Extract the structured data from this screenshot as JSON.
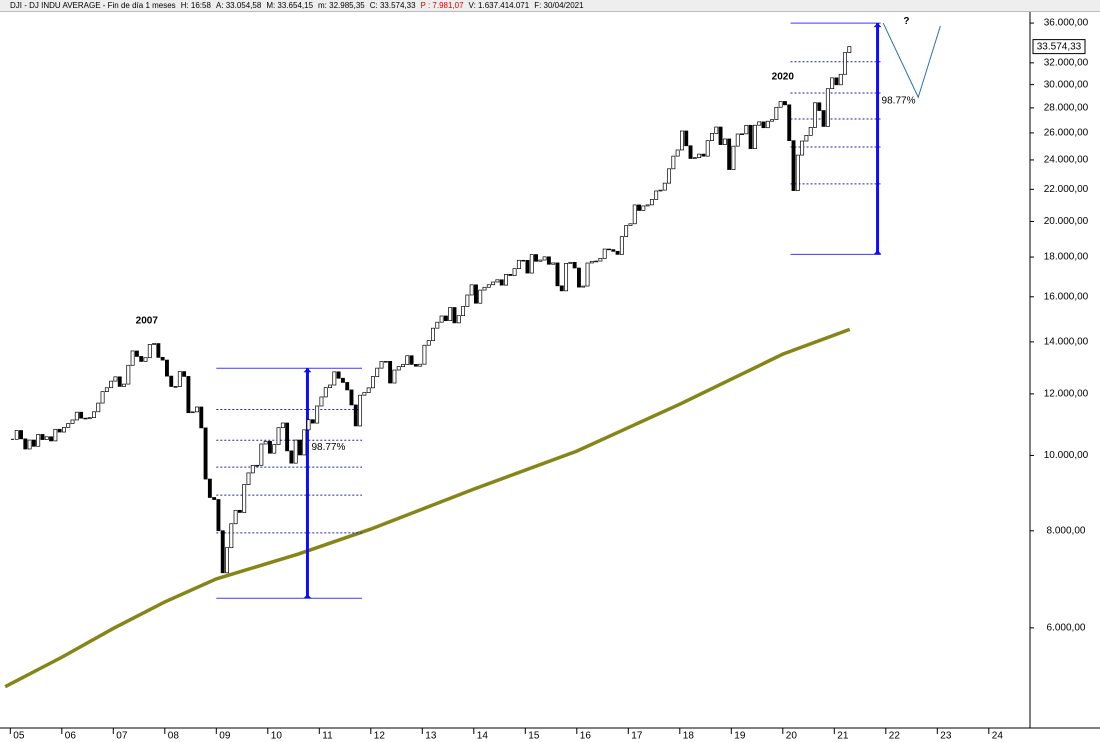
{
  "chart_data": {
    "type": "candlestick",
    "header": [
      "DJI - DJ INDU AVERAGE - Fin de día 1 meses",
      "H: 16:58",
      "A: 33.054,58",
      "M: 33.654,15",
      "m: 32.985,35",
      "C: 33.574,33",
      "P : 7.981,07",
      "V: 1.637.414.071",
      "F: 30/04/2021"
    ],
    "header_colors": [
      "#000",
      "#000",
      "#000",
      "#000",
      "#000",
      "#000",
      "#e00000",
      "#000",
      "#000"
    ],
    "x": [
      "2005-01",
      "2005-02",
      "2005-03",
      "2005-04",
      "2005-05",
      "2005-06",
      "2005-07",
      "2005-08",
      "2005-09",
      "2005-10",
      "2005-11",
      "2005-12",
      "2006-01",
      "2006-02",
      "2006-03",
      "2006-04",
      "2006-05",
      "2006-06",
      "2006-07",
      "2006-08",
      "2006-09",
      "2006-10",
      "2006-11",
      "2006-12",
      "2007-01",
      "2007-02",
      "2007-03",
      "2007-04",
      "2007-05",
      "2007-06",
      "2007-07",
      "2007-08",
      "2007-09",
      "2007-10",
      "2007-11",
      "2007-12",
      "2008-01",
      "2008-02",
      "2008-03",
      "2008-04",
      "2008-05",
      "2008-06",
      "2008-07",
      "2008-08",
      "2008-09",
      "2008-10",
      "2008-11",
      "2008-12",
      "2009-01",
      "2009-02",
      "2009-03",
      "2009-04",
      "2009-05",
      "2009-06",
      "2009-07",
      "2009-08",
      "2009-09",
      "2009-10",
      "2009-11",
      "2009-12",
      "2010-01",
      "2010-02",
      "2010-03",
      "2010-04",
      "2010-05",
      "2010-06",
      "2010-07",
      "2010-08",
      "2010-09",
      "2010-10",
      "2010-11",
      "2010-12",
      "2011-01",
      "2011-02",
      "2011-03",
      "2011-04",
      "2011-05",
      "2011-06",
      "2011-07",
      "2011-08",
      "2011-09",
      "2011-10",
      "2011-11",
      "2011-12",
      "2012-01",
      "2012-02",
      "2012-03",
      "2012-04",
      "2012-05",
      "2012-06",
      "2012-07",
      "2012-08",
      "2012-09",
      "2012-10",
      "2012-11",
      "2012-12",
      "2013-01",
      "2013-02",
      "2013-03",
      "2013-04",
      "2013-05",
      "2013-06",
      "2013-07",
      "2013-08",
      "2013-09",
      "2013-10",
      "2013-11",
      "2013-12",
      "2014-01",
      "2014-02",
      "2014-03",
      "2014-04",
      "2014-05",
      "2014-06",
      "2014-07",
      "2014-08",
      "2014-09",
      "2014-10",
      "2014-11",
      "2014-12",
      "2015-01",
      "2015-02",
      "2015-03",
      "2015-04",
      "2015-05",
      "2015-06",
      "2015-07",
      "2015-08",
      "2015-09",
      "2015-10",
      "2015-11",
      "2015-12",
      "2016-01",
      "2016-02",
      "2016-03",
      "2016-04",
      "2016-05",
      "2016-06",
      "2016-07",
      "2016-08",
      "2016-09",
      "2016-10",
      "2016-11",
      "2016-12",
      "2017-01",
      "2017-02",
      "2017-03",
      "2017-04",
      "2017-05",
      "2017-06",
      "2017-07",
      "2017-08",
      "2017-09",
      "2017-10",
      "2017-11",
      "2017-12",
      "2018-01",
      "2018-02",
      "2018-03",
      "2018-04",
      "2018-05",
      "2018-06",
      "2018-07",
      "2018-08",
      "2018-09",
      "2018-10",
      "2018-11",
      "2018-12",
      "2019-01",
      "2019-02",
      "2019-03",
      "2019-04",
      "2019-05",
      "2019-06",
      "2019-07",
      "2019-08",
      "2019-09",
      "2019-10",
      "2019-11",
      "2019-12",
      "2020-01",
      "2020-02",
      "2020-03",
      "2020-04",
      "2020-05",
      "2020-06",
      "2020-07",
      "2020-08",
      "2020-09",
      "2020-10",
      "2020-11",
      "2020-12",
      "2021-01",
      "2021-02",
      "2021-03",
      "2021-04"
    ],
    "close": [
      10490,
      10766,
      10504,
      10193,
      10467,
      10275,
      10641,
      10482,
      10569,
      10440,
      10806,
      10718,
      10865,
      10993,
      11109,
      11367,
      11168,
      11150,
      11186,
      11381,
      11679,
      12081,
      12221,
      12463,
      12622,
      12268,
      12354,
      13063,
      13628,
      13409,
      13212,
      13358,
      13896,
      13930,
      13372,
      13265,
      12650,
      12266,
      12263,
      12820,
      12638,
      11350,
      11378,
      11544,
      10851,
      9325,
      8829,
      8776,
      8001,
      7063,
      7609,
      8168,
      8500,
      8447,
      9172,
      9496,
      9712,
      9713,
      10345,
      10428,
      10067,
      10325,
      10857,
      11009,
      10137,
      9774,
      10466,
      10015,
      10788,
      11118,
      11006,
      11578,
      11892,
      12226,
      12320,
      12811,
      12570,
      12414,
      12143,
      11614,
      10913,
      11955,
      12046,
      12218,
      12633,
      12952,
      13212,
      13214,
      12393,
      12880,
      13009,
      13091,
      13437,
      13096,
      13026,
      13104,
      13861,
      14054,
      14579,
      14840,
      15116,
      14910,
      15500,
      14810,
      15130,
      15546,
      16086,
      16577,
      15699,
      16322,
      16458,
      16581,
      16717,
      16827,
      16563,
      17098,
      17043,
      17391,
      17828,
      17823,
      17165,
      18133,
      17776,
      17841,
      18011,
      17620,
      17690,
      16528,
      16285,
      17664,
      17720,
      17425,
      16466,
      16517,
      17685,
      17774,
      17787,
      17930,
      18432,
      18401,
      18308,
      18142,
      19124,
      19763,
      19864,
      21004,
      20663,
      20941,
      21009,
      21350,
      21891,
      21948,
      22405,
      23377,
      24272,
      24719,
      26149,
      25029,
      24103,
      24163,
      24416,
      24271,
      25415,
      25965,
      26458,
      25116,
      25538,
      23327,
      24999,
      25916,
      25929,
      26593,
      24815,
      26600,
      26864,
      26403,
      26917,
      27046,
      28051,
      28538,
      28256,
      25409,
      21917,
      24346,
      25383,
      25813,
      26428,
      28430,
      27782,
      26502,
      29639,
      30606,
      29983,
      30932,
      32982,
      33574.33
    ],
    "last_price": {
      "value": 33574.33,
      "label": "33.574,33"
    },
    "moving_average": {
      "color": "#85851a",
      "x": [
        2004.9,
        2006,
        2007,
        2008,
        2009,
        2010.6,
        2012,
        2014,
        2016,
        2018,
        2020,
        2021.3
      ],
      "values": [
        5040,
        5500,
        5990,
        6480,
        6936,
        7470,
        8040,
        9050,
        10130,
        11640,
        13500,
        14530
      ]
    },
    "annotations": [
      {
        "text": "2007",
        "x": 2007.65,
        "y": 14900
      },
      {
        "text": "2020",
        "x": 2020.0,
        "y": 30700
      },
      {
        "text": "?",
        "x": 2022.4,
        "y": 36200
      }
    ],
    "measures": [
      {
        "x": [
          2009.0,
          2011.83
        ],
        "at": 2010.77,
        "low": 6550,
        "high": 12950,
        "levels": [
          11460,
          10460,
          9660,
          8890,
          7950
        ],
        "label": "98.77%",
        "label_y": 10250
      },
      {
        "x": [
          2020.15,
          2021.9
        ],
        "at": 2021.84,
        "low": 18140,
        "high": 36000,
        "levels": [
          32100,
          29260,
          27090,
          24940,
          22360
        ],
        "label": "98.77%",
        "label_y": 28600
      }
    ],
    "projection": {
      "x": [
        2021.95,
        2022.63,
        2023.06
      ],
      "values": [
        36000,
        28900,
        35700
      ]
    },
    "xlim": [
      2004.8,
      2024.8
    ],
    "xticks": [
      {
        "value": 2005,
        "label": "05"
      },
      {
        "value": 2006,
        "label": "06"
      },
      {
        "value": 2007,
        "label": "07"
      },
      {
        "value": 2008,
        "label": "08"
      },
      {
        "value": 2009,
        "label": "09"
      },
      {
        "value": 2010,
        "label": "10"
      },
      {
        "value": 2011,
        "label": "11"
      },
      {
        "value": 2012,
        "label": "12"
      },
      {
        "value": 2013,
        "label": "13"
      },
      {
        "value": 2014,
        "label": "14"
      },
      {
        "value": 2015,
        "label": "15"
      },
      {
        "value": 2016,
        "label": "16"
      },
      {
        "value": 2017,
        "label": "17"
      },
      {
        "value": 2018,
        "label": "18"
      },
      {
        "value": 2019,
        "label": "19"
      },
      {
        "value": 2020,
        "label": "20"
      },
      {
        "value": 2021,
        "label": "21"
      },
      {
        "value": 2022,
        "label": "22"
      },
      {
        "value": 2023,
        "label": "23"
      },
      {
        "value": 2024,
        "label": "24"
      }
    ],
    "ylim": [
      4460,
      37200
    ],
    "log_scale": true,
    "yticks": [
      {
        "value": 6000,
        "label": "6.000,00"
      },
      {
        "value": 8000,
        "label": "8.000,00"
      },
      {
        "value": 10000,
        "label": "10.000,00"
      },
      {
        "value": 12000,
        "label": "12.000,00"
      },
      {
        "value": 14000,
        "label": "14.000,00"
      },
      {
        "value": 16000,
        "label": "16.000,00"
      },
      {
        "value": 18000,
        "label": "18.000,00"
      },
      {
        "value": 20000,
        "label": "20.000,00"
      },
      {
        "value": 22000,
        "label": "22.000,00"
      },
      {
        "value": 24000,
        "label": "24.000,00"
      },
      {
        "value": 26000,
        "label": "26.000,00"
      },
      {
        "value": 28000,
        "label": "28.000,00"
      },
      {
        "value": 30000,
        "label": "30.000,00"
      },
      {
        "value": 32000,
        "label": "32.000,00"
      },
      {
        "value": 36000,
        "label": "36.000,00"
      }
    ]
  }
}
